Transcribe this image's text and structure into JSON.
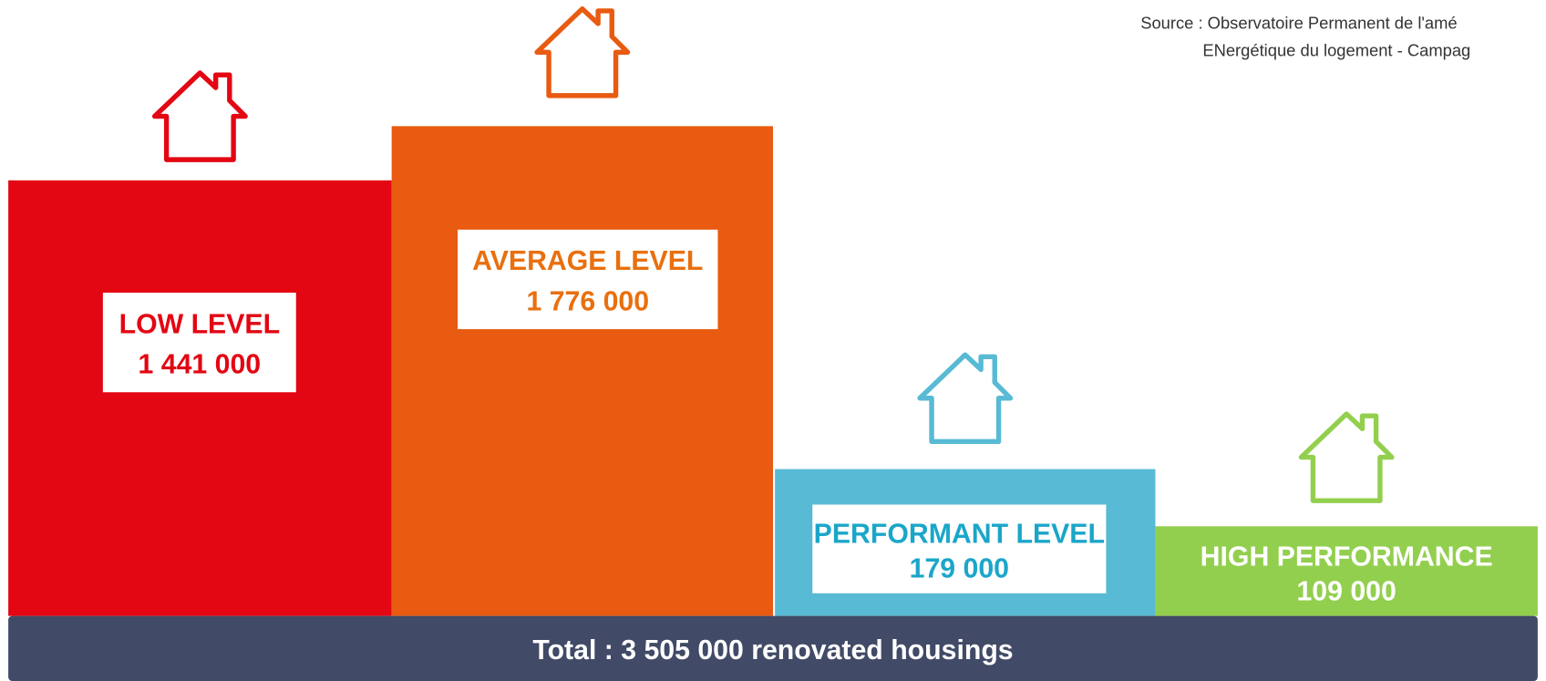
{
  "source": [
    "Source : Observatoire Permanent de l'amé",
    "ENergétique du logement - Campag"
  ],
  "levels": [
    {
      "label": "LOW LEVEL",
      "value": "1 441 000"
    },
    {
      "label": "AVERAGE LEVEL",
      "value": "1 776 000"
    },
    {
      "label": "PERFORMANT LEVEL",
      "value": "179 000"
    },
    {
      "label": "HIGH PERFORMANCE",
      "value": "109 000"
    }
  ],
  "total": "Total : 3 505 000 renovated housings"
}
